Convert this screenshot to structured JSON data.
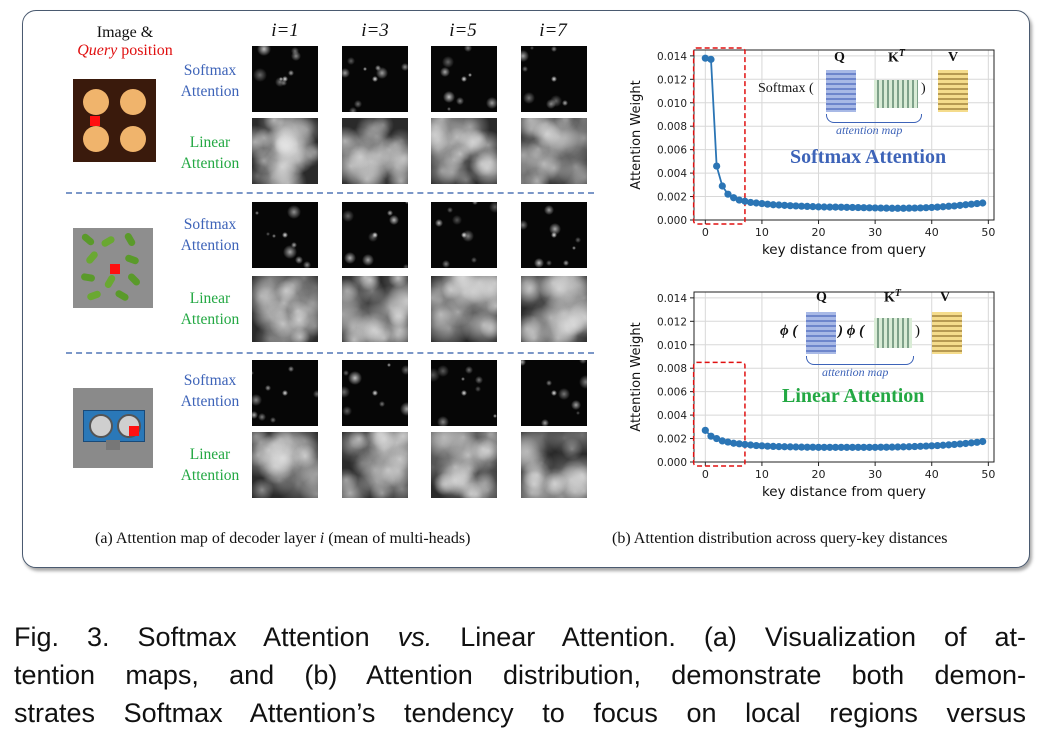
{
  "panel_a": {
    "header_image": "Image &",
    "header_query_italic": "Query",
    "header_query_rest": " position",
    "columns": [
      "i=1",
      "i=3",
      "i=5",
      "i=7"
    ],
    "rows": [
      {
        "softmax_1": "Softmax",
        "softmax_2": "Attention",
        "linear_1": "Linear",
        "linear_2": "Attention"
      },
      {
        "softmax_1": "Softmax",
        "softmax_2": "Attention",
        "linear_1": "Linear",
        "linear_2": "Attention"
      },
      {
        "softmax_1": "Softmax",
        "softmax_2": "Attention",
        "linear_1": "Linear",
        "linear_2": "Attention"
      }
    ],
    "caption_pre": "(a) Attention map of decoder layer ",
    "caption_i": "i",
    "caption_post": " (mean of  multi-heads)"
  },
  "panel_b": {
    "caption": "(b) Attention distribution across query-key distances",
    "top_formula": {
      "softmax": "Softmax (",
      "close": ")",
      "q": "Q",
      "k": "K",
      "t": "T",
      "v": "V",
      "map": "attention map"
    },
    "bottom_formula": {
      "phi_open": "ϕ (",
      "mid": ") ϕ (",
      "close": ")",
      "q": "Q",
      "k": "K",
      "t": "T",
      "v": "V",
      "map": "attention map"
    }
  },
  "chart_data": [
    {
      "type": "line",
      "title": "Softmax Attention",
      "xlabel": "key distance from query",
      "ylabel": "Attention Weight",
      "xlim": [
        -2,
        51
      ],
      "ylim": [
        0,
        0.0145
      ],
      "xticks": [
        0,
        10,
        20,
        30,
        40,
        50
      ],
      "yticks": [
        0.0,
        0.002,
        0.004,
        0.006,
        0.008,
        0.01,
        0.012,
        0.014
      ],
      "ytick_labels": [
        "0.000",
        "0.002",
        "0.004",
        "0.006",
        "0.008",
        "0.010",
        "0.012",
        "0.014"
      ],
      "grid": true,
      "color": "#2b75b5",
      "highlight_box": [
        -1,
        7
      ],
      "x": [
        0,
        1,
        2,
        3,
        4,
        5,
        6,
        7,
        8,
        9,
        10,
        11,
        12,
        13,
        14,
        15,
        16,
        17,
        18,
        19,
        20,
        21,
        22,
        23,
        24,
        25,
        26,
        27,
        28,
        29,
        30,
        31,
        32,
        33,
        34,
        35,
        36,
        37,
        38,
        39,
        40,
        41,
        42,
        43,
        44,
        45,
        46,
        47,
        48,
        49
      ],
      "y": [
        0.0138,
        0.0137,
        0.0046,
        0.0029,
        0.0022,
        0.0019,
        0.0017,
        0.0016,
        0.0015,
        0.00145,
        0.0014,
        0.00135,
        0.0013,
        0.00128,
        0.00125,
        0.00122,
        0.0012,
        0.00118,
        0.00116,
        0.00114,
        0.00112,
        0.00111,
        0.0011,
        0.0011,
        0.00109,
        0.00108,
        0.00107,
        0.00106,
        0.00105,
        0.00104,
        0.00103,
        0.00102,
        0.00101,
        0.001,
        0.001,
        0.001,
        0.00101,
        0.00102,
        0.00103,
        0.00105,
        0.00107,
        0.0011,
        0.00113,
        0.00117,
        0.0012,
        0.00125,
        0.0013,
        0.00135,
        0.0014,
        0.00145
      ]
    },
    {
      "type": "line",
      "title": "Linear Attention",
      "xlabel": "key distance from query",
      "ylabel": "Attention Weight",
      "xlim": [
        -2,
        51
      ],
      "ylim": [
        0,
        0.0145
      ],
      "xticks": [
        0,
        10,
        20,
        30,
        40,
        50
      ],
      "yticks": [
        0.0,
        0.002,
        0.004,
        0.006,
        0.008,
        0.01,
        0.012,
        0.014
      ],
      "ytick_labels": [
        "0.000",
        "0.002",
        "0.004",
        "0.006",
        "0.008",
        "0.010",
        "0.012",
        "0.014"
      ],
      "grid": true,
      "color": "#2b75b5",
      "highlight_box": [
        -1,
        7
      ],
      "x": [
        0,
        1,
        2,
        3,
        4,
        5,
        6,
        7,
        8,
        9,
        10,
        11,
        12,
        13,
        14,
        15,
        16,
        17,
        18,
        19,
        20,
        21,
        22,
        23,
        24,
        25,
        26,
        27,
        28,
        29,
        30,
        31,
        32,
        33,
        34,
        35,
        36,
        37,
        38,
        39,
        40,
        41,
        42,
        43,
        44,
        45,
        46,
        47,
        48,
        49
      ],
      "y": [
        0.0027,
        0.0022,
        0.002,
        0.0018,
        0.0017,
        0.0016,
        0.00155,
        0.0015,
        0.00145,
        0.0014,
        0.00138,
        0.00135,
        0.00133,
        0.00131,
        0.0013,
        0.00129,
        0.00128,
        0.00127,
        0.00126,
        0.00126,
        0.00125,
        0.00125,
        0.00125,
        0.00125,
        0.00125,
        0.00125,
        0.00125,
        0.00125,
        0.00125,
        0.00125,
        0.00125,
        0.00126,
        0.00126,
        0.00127,
        0.00128,
        0.00129,
        0.0013,
        0.00132,
        0.00134,
        0.00136,
        0.00138,
        0.0014,
        0.00143,
        0.00146,
        0.0015,
        0.00154,
        0.00158,
        0.00163,
        0.00168,
        0.00175
      ]
    }
  ],
  "figure_caption": {
    "line1_a": "Fig. 3. Softmax Attention ",
    "line1_vs": "vs.",
    "line1_b": " Linear Attention. (a) Visualization of at-",
    "line2": "tention maps, and (b) Attention distribution, demonstrate both demon-",
    "line3": "strates Softmax Attention’s tendency to focus on local regions versus"
  }
}
